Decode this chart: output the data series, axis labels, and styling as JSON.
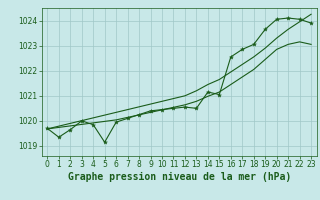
{
  "xlabel": "Graphe pression niveau de la mer (hPa)",
  "bg_color": "#c8e8e8",
  "grid_color": "#a0c8c8",
  "line_color": "#1a5c1a",
  "xlim": [
    -0.5,
    23.5
  ],
  "ylim": [
    1018.6,
    1024.5
  ],
  "yticks": [
    1019,
    1020,
    1021,
    1022,
    1023,
    1024
  ],
  "xticks": [
    0,
    1,
    2,
    3,
    4,
    5,
    6,
    7,
    8,
    9,
    10,
    11,
    12,
    13,
    14,
    15,
    16,
    17,
    18,
    19,
    20,
    21,
    22,
    23
  ],
  "main_data": [
    1019.7,
    1019.35,
    1019.65,
    1020.0,
    1019.85,
    1019.15,
    1019.95,
    1020.1,
    1020.25,
    1020.4,
    1020.45,
    1020.5,
    1020.55,
    1020.5,
    1021.15,
    1021.05,
    1022.55,
    1022.85,
    1023.05,
    1023.65,
    1024.05,
    1024.1,
    1024.05,
    1023.9
  ],
  "trend_upper": [
    1019.68,
    1019.79,
    1019.9,
    1020.01,
    1020.12,
    1020.23,
    1020.34,
    1020.45,
    1020.56,
    1020.67,
    1020.78,
    1020.89,
    1021.0,
    1021.2,
    1021.45,
    1021.65,
    1021.95,
    1022.25,
    1022.55,
    1022.9,
    1023.3,
    1023.65,
    1023.95,
    1024.25
  ],
  "trend_lower": [
    1019.68,
    1019.74,
    1019.8,
    1019.86,
    1019.92,
    1019.98,
    1020.04,
    1020.14,
    1020.24,
    1020.34,
    1020.44,
    1020.54,
    1020.64,
    1020.78,
    1020.98,
    1021.15,
    1021.45,
    1021.75,
    1022.05,
    1022.45,
    1022.85,
    1023.05,
    1023.15,
    1023.05
  ],
  "tick_fontsize": 5.5,
  "label_fontsize": 7
}
